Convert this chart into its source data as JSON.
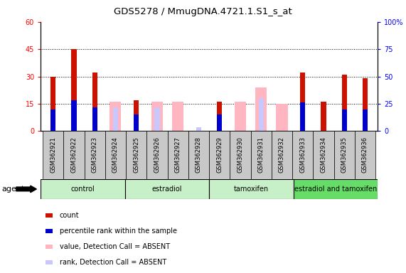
{
  "title": "GDS5278 / MmugDNA.4721.1.S1_s_at",
  "samples": [
    "GSM362921",
    "GSM362922",
    "GSM362923",
    "GSM362924",
    "GSM362925",
    "GSM362926",
    "GSM362927",
    "GSM362928",
    "GSM362929",
    "GSM362930",
    "GSM362931",
    "GSM362932",
    "GSM362933",
    "GSM362934",
    "GSM362935",
    "GSM362936"
  ],
  "count_present": [
    30,
    45,
    32,
    0,
    17,
    0,
    0,
    0,
    16,
    0,
    0,
    0,
    32,
    16,
    31,
    29
  ],
  "rank_present": [
    20,
    28,
    22,
    0,
    15,
    0,
    0,
    0,
    15,
    0,
    0,
    0,
    26,
    0,
    20,
    20
  ],
  "value_absent": [
    0,
    0,
    0,
    16,
    0,
    16,
    16,
    0,
    0,
    16,
    24,
    15,
    0,
    0,
    0,
    0
  ],
  "rank_absent": [
    0,
    0,
    0,
    13,
    0,
    13,
    0,
    2,
    0,
    0,
    18,
    0,
    0,
    0,
    0,
    0
  ],
  "group_labels": [
    "control",
    "estradiol",
    "tamoxifen",
    "estradiol and tamoxifen"
  ],
  "group_starts": [
    0,
    4,
    8,
    12
  ],
  "group_ends": [
    4,
    8,
    12,
    16
  ],
  "group_colors": [
    "#c8f0c8",
    "#c8f0c8",
    "#c8f0c8",
    "#66dd66"
  ],
  "ylim_left": [
    0,
    60
  ],
  "ylim_right": [
    0,
    100
  ],
  "yticks_left": [
    0,
    15,
    30,
    45,
    60
  ],
  "yticks_right": [
    0,
    25,
    50,
    75,
    100
  ],
  "ytick_labels_left": [
    "0",
    "15",
    "30",
    "45",
    "60"
  ],
  "ytick_labels_right": [
    "0",
    "25",
    "50",
    "75",
    "100%"
  ],
  "color_count": "#cc1100",
  "color_rank": "#0000cc",
  "color_value_absent": "#ffb6c1",
  "color_rank_absent": "#c8c8ff",
  "bg_plot": "#ffffff",
  "bg_xtick": "#c8c8c8",
  "legend_items": [
    {
      "color": "#cc1100",
      "label": "count"
    },
    {
      "color": "#0000cc",
      "label": "percentile rank within the sample"
    },
    {
      "color": "#ffb6c1",
      "label": "value, Detection Call = ABSENT"
    },
    {
      "color": "#c8c8ff",
      "label": "rank, Detection Call = ABSENT"
    }
  ],
  "thin_bar_width": 0.25,
  "wide_bar_width": 0.55
}
